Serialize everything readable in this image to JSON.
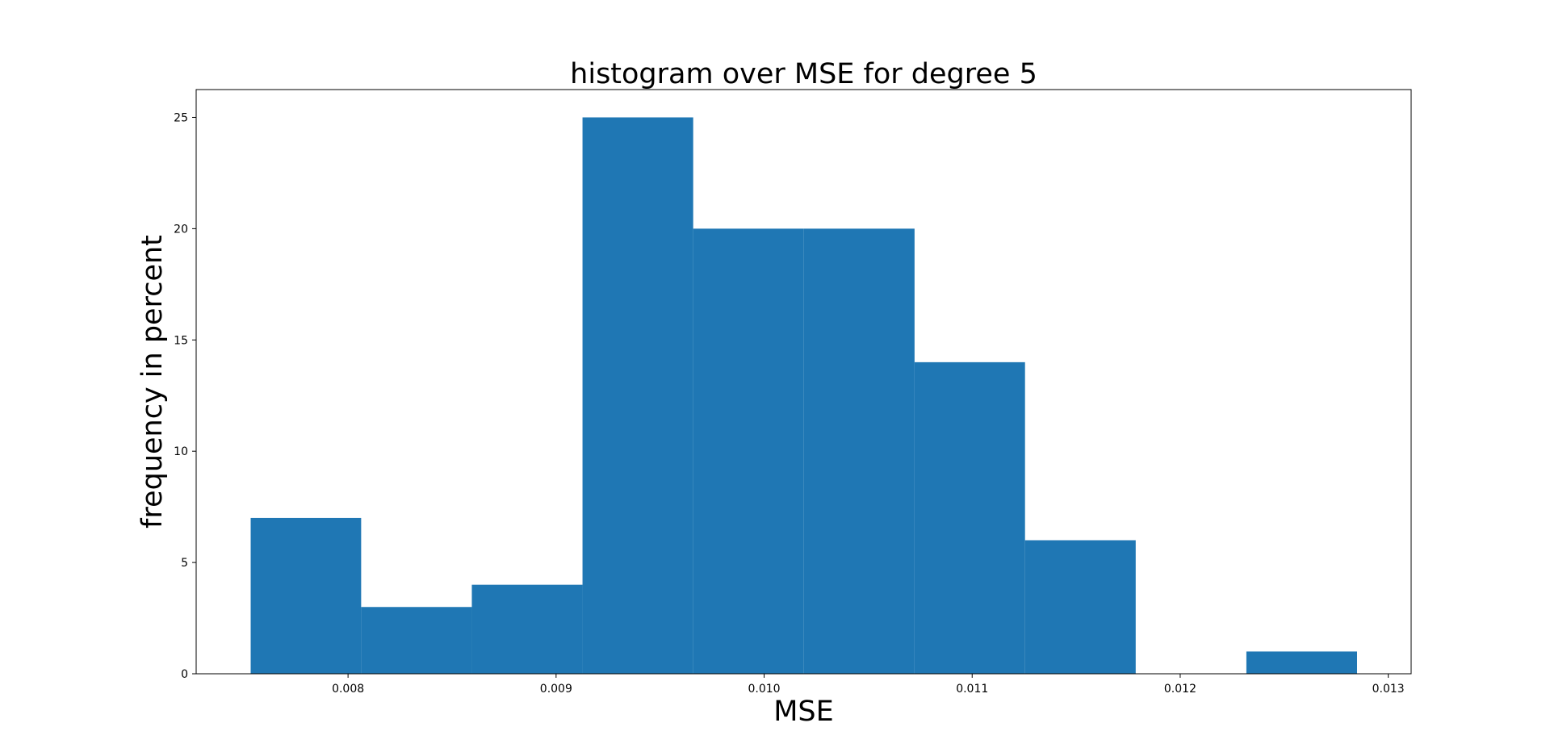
{
  "chart_data": {
    "type": "bar",
    "subtype": "histogram",
    "title": "histogram over MSE for degree 5",
    "xlabel": "MSE",
    "ylabel": "frequency in percent",
    "bin_edges": [
      0.007532,
      0.008063,
      0.008595,
      0.009127,
      0.009659,
      0.010191,
      0.010723,
      0.011254,
      0.011786,
      0.012318,
      0.01285
    ],
    "values": [
      7,
      3,
      4,
      25,
      20,
      20,
      14,
      6,
      0,
      1
    ],
    "xlim": [
      0.00727,
      0.01311
    ],
    "ylim": [
      0,
      26.25
    ],
    "xticks": [
      0.008,
      0.009,
      0.01,
      0.011,
      0.012,
      0.013
    ],
    "xtick_labels": [
      "0.008",
      "0.009",
      "0.010",
      "0.011",
      "0.012",
      "0.013"
    ],
    "yticks": [
      0,
      5,
      10,
      15,
      20,
      25
    ],
    "ytick_labels": [
      "0",
      "5",
      "10",
      "15",
      "20",
      "25"
    ],
    "bar_color": "#1f77b4",
    "grid": false,
    "legend": "none"
  }
}
